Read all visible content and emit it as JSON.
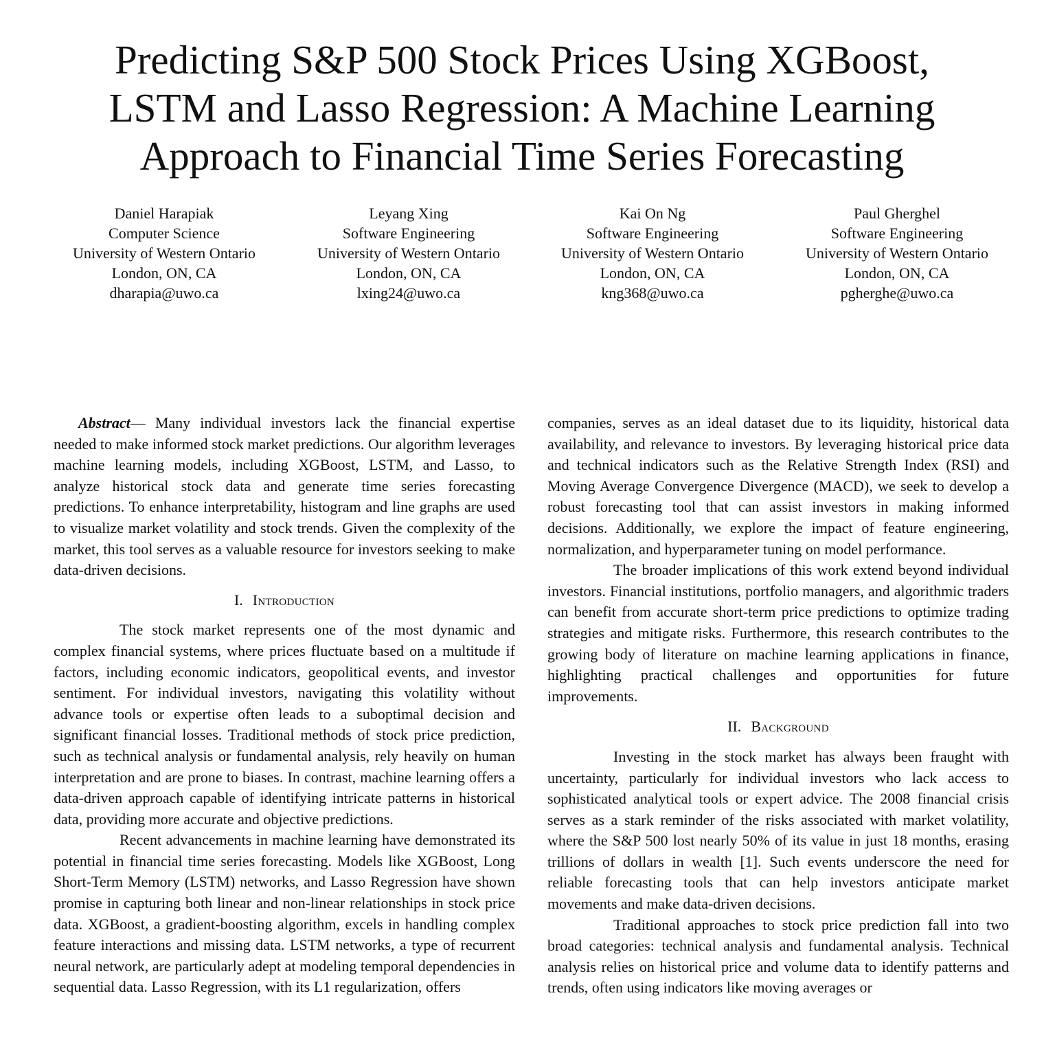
{
  "paper": {
    "title_lines": [
      "Predicting S&P 500 Stock Prices Using XGBoost,",
      "LSTM and Lasso Regression: A Machine Learning",
      "Approach to Financial Time Series Forecasting"
    ],
    "authors": [
      {
        "name": "Daniel Harapiak",
        "dept": "Computer Science",
        "org": "University of Western Ontario",
        "city": "London, ON, CA",
        "email": "dharapia@uwo.ca"
      },
      {
        "name": "Leyang Xing",
        "dept": "Software Engineering",
        "org": "University of Western Ontario",
        "city": "London, ON, CA",
        "email": "lxing24@uwo.ca"
      },
      {
        "name": "Kai On Ng",
        "dept": "Software Engineering",
        "org": "University of Western Ontario",
        "city": "London, ON, CA",
        "email": "kng368@uwo.ca"
      },
      {
        "name": "Paul Gherghel",
        "dept": "Software Engineering",
        "org": "University of Western Ontario",
        "city": "London, ON, CA",
        "email": "pgherghe@uwo.ca"
      }
    ],
    "abstract": {
      "label": "Abstract",
      "dash": "— ",
      "text": "Many individual investors lack the financial expertise needed to make informed stock market predictions. Our algorithm leverages machine learning models, including XGBoost, LSTM, and Lasso, to analyze historical stock data and generate time series forecasting predictions. To enhance interpretability, histogram and line graphs are used to visualize market volatility and stock trends. Given the complexity of the market, this tool serves as a valuable resource for investors seeking to make data-driven decisions."
    },
    "sections": [
      {
        "number": "I.",
        "title": "Introduction",
        "paragraphs": [
          "The stock market represents one of the most dynamic and complex financial systems, where prices fluctuate based on a multitude if factors, including economic indicators, geopolitical events, and investor sentiment. For individual investors, navigating this volatility without advance tools or expertise often leads to a suboptimal decision and significant financial losses. Traditional methods of stock price prediction, such as technical analysis or fundamental analysis, rely heavily on human interpretation and are prone to biases. In contrast, machine learning offers a data-driven approach capable of identifying intricate patterns in historical data, providing more accurate and objective predictions.",
          "Recent advancements in machine learning have demonstrated its potential in financial time series forecasting. Models like XGBoost, Long Short-Term Memory (LSTM) networks, and Lasso Regression have shown promise in capturing both linear and non-linear relationships in stock price data. XGBoost, a gradient-boosting algorithm, excels in handling complex feature interactions and missing data. LSTM networks, a type of recurrent neural network, are particularly adept at modeling temporal dependencies in sequential data. Lasso Regression, with its L1 regularization, offers",
          "companies, serves as an ideal dataset due to its liquidity, historical data availability, and relevance to investors. By leveraging historical price data and technical indicators such as the Relative Strength Index (RSI) and Moving Average Convergence Divergence (MACD), we seek to develop a robust forecasting tool that can assist investors in making informed decisions. Additionally, we explore the impact of feature engineering, normalization, and hyperparameter tuning on model performance.",
          "The broader implications of this work extend beyond individual investors. Financial institutions, portfolio managers, and algorithmic traders can benefit from accurate short-term price predictions to optimize trading strategies and mitigate risks. Furthermore, this research contributes to the growing body of literature on machine learning applications in finance, highlighting practical challenges and opportunities for future improvements."
        ]
      },
      {
        "number": "II.",
        "title": "Background",
        "paragraphs": [
          "Investing in the stock market has always been fraught with uncertainty, particularly for individual investors who lack access to sophisticated analytical tools or expert advice. The 2008 financial crisis serves as a stark reminder of the risks associated with market volatility, where the S&P 500 lost nearly 50% of its value in just 18 months, erasing trillions of dollars in wealth [1]. Such events underscore the need for reliable forecasting tools that can help investors anticipate market movements and make data-driven decisions.",
          "Traditional approaches to stock price prediction fall into two broad categories: technical analysis and fundamental analysis. Technical analysis relies on historical price and volume data to identify patterns and trends, often using indicators like moving averages or"
        ]
      }
    ]
  }
}
